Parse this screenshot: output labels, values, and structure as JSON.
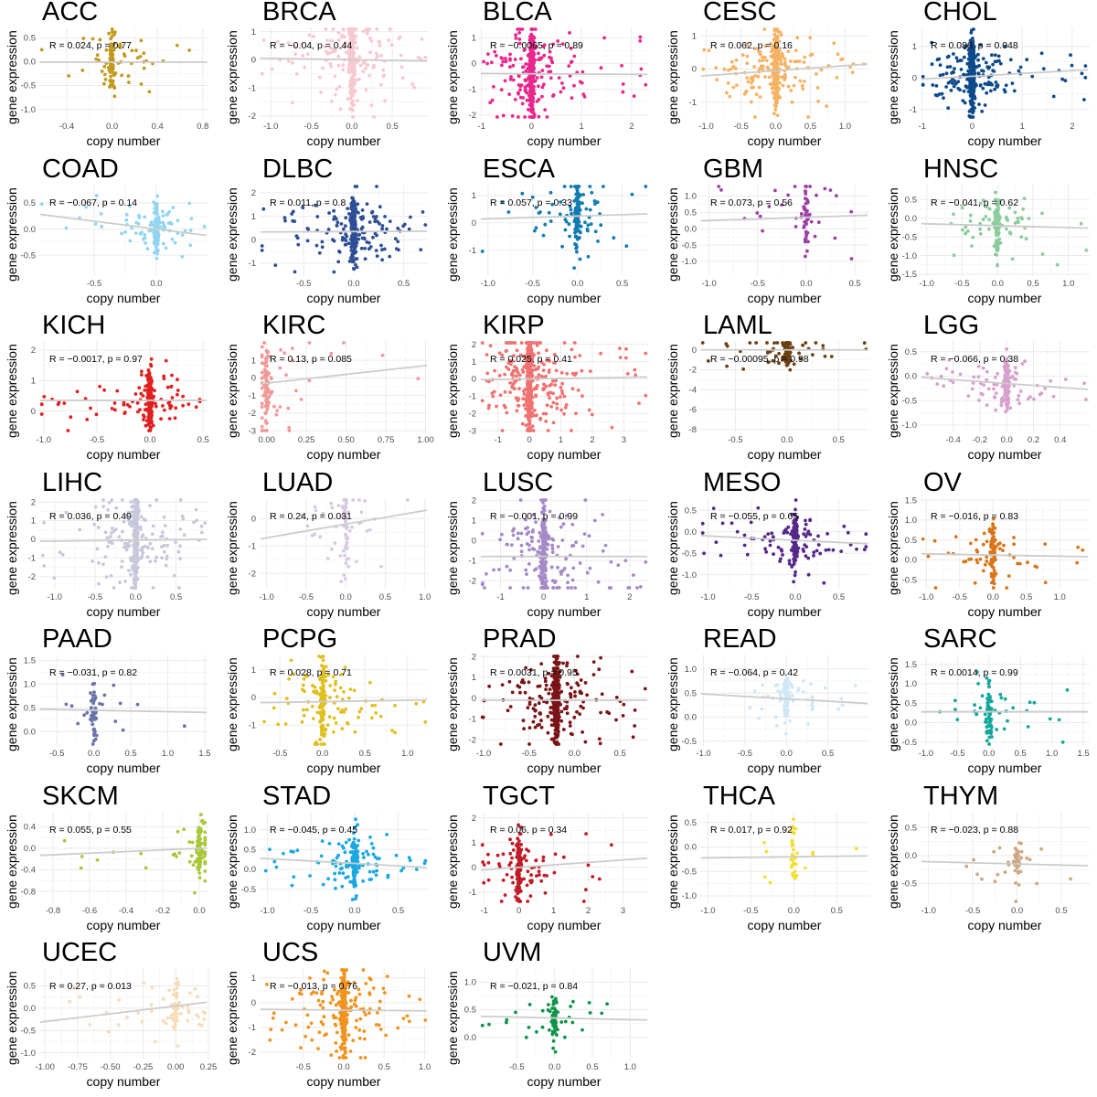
{
  "chart_data": [
    {
      "title": "ACC",
      "r": "R = 0.024, p = 0.77",
      "xlabel": "copy number",
      "ylabel": "gene expression",
      "color": "#c29a1e",
      "xlim": [
        -0.65,
        0.85
      ],
      "ylim": [
        -1.2,
        0.72
      ],
      "xticks": [
        "-0.4",
        "0.0",
        "0.4",
        "0.8"
      ],
      "yticks": [
        "-1.0",
        "-0.5",
        "0.0",
        "0.5"
      ],
      "fit": [
        0.0,
        -0.01
      ],
      "n": 120,
      "cluster_x": 0.0,
      "spread_y": 0.35
    },
    {
      "title": "BRCA",
      "r": "R = −0.04, p = 0.44",
      "xlabel": "copy number",
      "ylabel": "gene expression",
      "color": "#f8c8d0",
      "xlim": [
        -1.15,
        0.95
      ],
      "ylim": [
        -2.1,
        1.15
      ],
      "xticks": [
        "-1.0",
        "-0.5",
        "0.0",
        "0.5"
      ],
      "yticks": [
        "-2",
        "-1",
        "0",
        "1"
      ],
      "fit": [
        -0.05,
        0.0
      ],
      "n": 320,
      "cluster_x": 0.0,
      "spread_y": 0.6
    },
    {
      "title": "BLCA",
      "r": "R = −0.0065, p = 0.89",
      "xlabel": "copy number",
      "ylabel": "gene expression",
      "color": "#e8288c",
      "xlim": [
        -1.05,
        2.35
      ],
      "ylim": [
        -2.15,
        1.4
      ],
      "xticks": [
        "-1",
        "0",
        "1",
        "2"
      ],
      "yticks": [
        "-2",
        "-1",
        "0",
        "1"
      ],
      "fit": [
        -0.01,
        -0.4
      ],
      "n": 380,
      "cluster_x": 0.0,
      "spread_y": 0.55
    },
    {
      "title": "CESC",
      "r": "R = 0.062, p = 0.16",
      "xlabel": "copy number",
      "ylabel": "gene expression",
      "color": "#f6b264",
      "xlim": [
        -1.1,
        1.35
      ],
      "ylim": [
        -1.5,
        1.25
      ],
      "xticks": [
        "-1.0",
        "-0.5",
        "0.0",
        "0.5",
        "1.0"
      ],
      "yticks": [
        "-1",
        "0",
        "1"
      ],
      "fit": [
        0.15,
        -0.05
      ],
      "n": 400,
      "cluster_x": 0.0,
      "spread_y": 0.4
    },
    {
      "title": "CHOL",
      "r": "R = 0.088, p = 0.048",
      "xlabel": "copy number",
      "ylabel": "gene expression",
      "color": "#0d4a8a",
      "xlim": [
        -1.05,
        2.35
      ],
      "ylim": [
        -1.3,
        1.6
      ],
      "xticks": [
        "-1",
        "0",
        "1",
        "2"
      ],
      "yticks": [
        "-1",
        "0",
        "1"
      ],
      "fit": [
        0.09,
        0.05
      ],
      "n": 420,
      "cluster_x": 0.0,
      "spread_y": 0.4
    },
    {
      "title": "COAD",
      "r": "R = −0.067, p = 0.14",
      "xlabel": "copy number",
      "ylabel": "gene expression",
      "color": "#92d5f2",
      "xlim": [
        -0.95,
        0.42
      ],
      "ylim": [
        -0.9,
        0.85
      ],
      "xticks": [
        "-0.5",
        "0.0"
      ],
      "yticks": [
        "-0.5",
        "0.0",
        "0.5"
      ],
      "fit": [
        -0.3,
        0.0
      ],
      "n": 160,
      "cluster_x": 0.0,
      "spread_y": 0.3
    },
    {
      "title": "DLBC",
      "r": "R = 0.011, p = 0.8",
      "xlabel": "copy number",
      "ylabel": "gene expression",
      "color": "#2e4e96",
      "xlim": [
        -0.95,
        0.75
      ],
      "ylim": [
        -1.55,
        2.35
      ],
      "xticks": [
        "-0.5",
        "0.0",
        "0.5"
      ],
      "yticks": [
        "-1",
        "0",
        "1",
        "2"
      ],
      "fit": [
        0.02,
        0.35
      ],
      "n": 320,
      "cluster_x": 0.0,
      "spread_y": 0.4
    },
    {
      "title": "ESCA",
      "r": "R = 0.057, p = 0.33",
      "xlabel": "copy number",
      "ylabel": "gene expression",
      "color": "#127bb0",
      "xlim": [
        -1.1,
        0.8
      ],
      "ylim": [
        -1.95,
        1.4
      ],
      "xticks": [
        "-1.0",
        "-0.5",
        "0.0",
        "0.5"
      ],
      "yticks": [
        "-1",
        "0",
        "1"
      ],
      "fit": [
        0.1,
        0.25
      ],
      "n": 160,
      "cluster_x": 0.0,
      "spread_y": 0.5
    },
    {
      "title": "GBM",
      "r": "R = 0.073, p = 0.56",
      "xlabel": "copy number",
      "ylabel": "gene expression",
      "color": "#9b3fa5",
      "xlim": [
        -1.1,
        0.65
      ],
      "ylim": [
        -1.45,
        1.35
      ],
      "xticks": [
        "-1.0",
        "-0.5",
        "0.0",
        "0.5"
      ],
      "yticks": [
        "-1.0",
        "-0.5",
        "0.0",
        "0.5",
        "1.0"
      ],
      "fit": [
        0.1,
        0.35
      ],
      "n": 70,
      "cluster_x": 0.0,
      "spread_y": 0.5
    },
    {
      "title": "HNSC",
      "r": "R = −0.041, p = 0.62",
      "xlabel": "copy number",
      "ylabel": "gene expression",
      "color": "#8ccc9c",
      "xlim": [
        -1.1,
        1.3
      ],
      "ylim": [
        -1.55,
        0.9
      ],
      "xticks": [
        "-1.0",
        "-0.5",
        "0.0",
        "0.5",
        "1.0"
      ],
      "yticks": [
        "-1.5",
        "-1.0",
        "-0.5",
        "0.0",
        "0.5"
      ],
      "fit": [
        -0.05,
        -0.2
      ],
      "n": 150,
      "cluster_x": 0.0,
      "spread_y": 0.4
    },
    {
      "title": "KICH",
      "r": "R = −0.0017, p = 0.97",
      "xlabel": "copy number",
      "ylabel": "gene expression",
      "color": "#e02020",
      "xlim": [
        -1.05,
        0.55
      ],
      "ylim": [
        -0.7,
        2.3
      ],
      "xticks": [
        "-1.0",
        "-0.5",
        "0.0",
        "0.5"
      ],
      "yticks": [
        "0",
        "1",
        "2"
      ],
      "fit": [
        0.0,
        0.35
      ],
      "n": 230,
      "cluster_x": 0.0,
      "spread_y": 0.35
    },
    {
      "title": "KIRC",
      "r": "R = 0.13, p = 0.085",
      "xlabel": "copy number",
      "ylabel": "gene expression",
      "color": "#f29a9a",
      "xlim": [
        -0.05,
        1.02
      ],
      "ylim": [
        -3.1,
        2.1
      ],
      "xticks": [
        "0.00",
        "0.25",
        "0.50",
        "0.75",
        "1.00"
      ],
      "yticks": [
        "-3",
        "-2",
        "-1",
        "0",
        "1"
      ],
      "fit": [
        1.0,
        -0.3
      ],
      "n": 120,
      "cluster_x": 0.0,
      "spread_y": 0.6
    },
    {
      "title": "KIRP",
      "r": "R = 0.025, p = 0.41",
      "xlabel": "copy number",
      "ylabel": "gene expression",
      "color": "#f07272",
      "xlim": [
        -1.6,
        3.8
      ],
      "ylim": [
        -3.1,
        2.2
      ],
      "xticks": [
        "-1",
        "0",
        "1",
        "2",
        "3"
      ],
      "yticks": [
        "-3",
        "-2",
        "-1",
        "0",
        "1",
        "2"
      ],
      "fit": [
        0.03,
        0.0
      ],
      "n": 550,
      "cluster_x": 0.0,
      "spread_y": 0.6
    },
    {
      "title": "LAML",
      "r": "R = −0.00095, p = 0.98",
      "xlabel": "copy number",
      "ylabel": "gene expression",
      "color": "#6b4012",
      "xlim": [
        -0.85,
        0.8
      ],
      "ylim": [
        -8.3,
        0.9
      ],
      "xticks": [
        "-0.5",
        "0.0",
        "0.5"
      ],
      "yticks": [
        "-8",
        "-6",
        "-4",
        "-2",
        "0"
      ],
      "fit": [
        0.0,
        0.0
      ],
      "n": 120,
      "cluster_x": 0.0,
      "spread_y": 0.2
    },
    {
      "title": "LGG",
      "r": "R = −0.066, p = 0.38",
      "xlabel": "copy number",
      "ylabel": "gene expression",
      "color": "#d7a1cc",
      "xlim": [
        -0.65,
        0.62
      ],
      "ylim": [
        -1.15,
        0.72
      ],
      "xticks": [
        "-0.4",
        "-0.2",
        "0.0",
        "0.2",
        "0.4"
      ],
      "yticks": [
        "-1.0",
        "-0.5",
        "0.0",
        "0.5"
      ],
      "fit": [
        -0.2,
        -0.15
      ],
      "n": 180,
      "cluster_x": 0.0,
      "spread_y": 0.3
    },
    {
      "title": "LIHC",
      "r": "R = 0.036, p = 0.49",
      "xlabel": "copy number",
      "ylabel": "gene expression",
      "color": "#c8c8dc",
      "xlim": [
        -1.2,
        0.9
      ],
      "ylim": [
        -2.7,
        2.2
      ],
      "xticks": [
        "-1.0",
        "-0.5",
        "0.0",
        "0.5"
      ],
      "yticks": [
        "-2",
        "-1",
        "0",
        "1",
        "2"
      ],
      "fit": [
        0.05,
        -0.05
      ],
      "n": 380,
      "cluster_x": 0.0,
      "spread_y": 0.6
    },
    {
      "title": "LUAD",
      "r": "R = 0.24, p = 0.031",
      "xlabel": "copy number",
      "ylabel": "gene expression",
      "color": "#d8c8e2",
      "xlim": [
        -1.1,
        1.05
      ],
      "ylim": [
        -2.6,
        0.75
      ],
      "xticks": [
        "-1.0",
        "-0.5",
        "0.0",
        "0.5",
        "1.0"
      ],
      "yticks": [
        "-2",
        "-1",
        "0"
      ],
      "fit": [
        0.5,
        -0.2
      ],
      "n": 80,
      "cluster_x": 0.0,
      "spread_y": 0.6
    },
    {
      "title": "LUSC",
      "r": "R = −0.001, p = 0.99",
      "xlabel": "copy number",
      "ylabel": "gene expression",
      "color": "#a68ac8",
      "xlim": [
        -1.5,
        2.45
      ],
      "ylim": [
        -2.45,
        2.1
      ],
      "xticks": [
        "-1",
        "0",
        "1",
        "2"
      ],
      "yticks": [
        "-2",
        "-1",
        "0",
        "1",
        "2"
      ],
      "fit": [
        0.0,
        -0.8
      ],
      "n": 320,
      "cluster_x": 0.0,
      "spread_y": 0.6
    },
    {
      "title": "MESO",
      "r": "R = −0.055, p = 0.65",
      "xlabel": "copy number",
      "ylabel": "gene expression",
      "color": "#55288a",
      "xlim": [
        -1.1,
        0.85
      ],
      "ylim": [
        -1.35,
        0.78
      ],
      "xticks": [
        "-1.0",
        "-0.5",
        "0.0",
        "0.5"
      ],
      "yticks": [
        "-1.0",
        "-0.5",
        "0.0",
        "0.5"
      ],
      "fit": [
        -0.1,
        -0.2
      ],
      "n": 200,
      "cluster_x": 0.0,
      "spread_y": 0.35
    },
    {
      "title": "OV",
      "r": "R = −0.016, p = 0.83",
      "xlabel": "copy number",
      "ylabel": "gene expression",
      "color": "#d8761a",
      "xlim": [
        -1.1,
        1.45
      ],
      "ylim": [
        -0.75,
        1.55
      ],
      "xticks": [
        "-1.0",
        "-0.5",
        "0.0",
        "0.5",
        "1.0"
      ],
      "yticks": [
        "-0.5",
        "0.0",
        "0.5",
        "1.0",
        "1.5"
      ],
      "fit": [
        -0.03,
        0.12
      ],
      "n": 120,
      "cluster_x": 0.0,
      "spread_y": 0.35
    },
    {
      "title": "PAAD",
      "r": "R = −0.031, p = 0.82",
      "xlabel": "copy number",
      "ylabel": "gene expression",
      "color": "#6a74a8",
      "xlim": [
        -0.75,
        1.55
      ],
      "ylim": [
        -0.3,
        1.62
      ],
      "xticks": [
        "-0.5",
        "0.0",
        "0.5",
        "1.0",
        "1.5"
      ],
      "yticks": [
        "0.0",
        "0.5",
        "1.0",
        "1.5"
      ],
      "fit": [
        -0.03,
        0.45
      ],
      "n": 60,
      "cluster_x": 0.0,
      "spread_y": 0.35
    },
    {
      "title": "PCPG",
      "r": "R = 0.028, p = 0.71",
      "xlabel": "copy number",
      "ylabel": "gene expression",
      "color": "#e0c020",
      "xlim": [
        -0.75,
        1.25
      ],
      "ylim": [
        -1.75,
        1.55
      ],
      "xticks": [
        "-0.5",
        "0.0",
        "0.5",
        "1.0"
      ],
      "yticks": [
        "-1",
        "0",
        "1"
      ],
      "fit": [
        0.05,
        -0.15
      ],
      "n": 200,
      "cluster_x": 0.0,
      "spread_y": 0.55
    },
    {
      "title": "PRAD",
      "r": "R = 0.0031, p = 0.95",
      "xlabel": "copy number",
      "ylabel": "gene expression",
      "color": "#7a1418",
      "xlim": [
        -1.05,
        0.82
      ],
      "ylim": [
        -2.3,
        2.1
      ],
      "xticks": [
        "-1.0",
        "-0.5",
        "0.0",
        "0.5"
      ],
      "yticks": [
        "-2",
        "-1",
        "0",
        "1",
        "2"
      ],
      "fit": [
        0.0,
        -0.1
      ],
      "n": 420,
      "cluster_x": -0.2,
      "spread_y": 0.5
    },
    {
      "title": "READ",
      "r": "R = −0.064, p = 0.42",
      "xlabel": "copy number",
      "ylabel": "gene expression",
      "color": "#d0e8f5",
      "xlim": [
        -1.05,
        1.0
      ],
      "ylim": [
        -0.6,
        1.3
      ],
      "xticks": [
        "-1.0",
        "-0.5",
        "0.0",
        "0.5"
      ],
      "yticks": [
        "-0.5",
        "0.0",
        "0.5",
        "1.0"
      ],
      "fit": [
        -0.1,
        0.38
      ],
      "n": 110,
      "cluster_x": 0.0,
      "spread_y": 0.3
    },
    {
      "title": "SARC",
      "r": "R = 0.0014, p = 0.99",
      "xlabel": "copy number",
      "ylabel": "gene expression",
      "color": "#14a89c",
      "xlim": [
        -1.1,
        1.6
      ],
      "ylim": [
        -0.6,
        1.75
      ],
      "xticks": [
        "-1.0",
        "-0.5",
        "0.0",
        "0.5",
        "1.0",
        "1.5"
      ],
      "yticks": [
        "-0.5",
        "0.0",
        "0.5",
        "1.0",
        "1.5"
      ],
      "fit": [
        0.0,
        0.28
      ],
      "n": 100,
      "cluster_x": 0.0,
      "spread_y": 0.35
    },
    {
      "title": "SKCM",
      "r": "R = 0.055, p = 0.55",
      "xlabel": "copy number",
      "ylabel": "gene expression",
      "color": "#a8c83a",
      "xlim": [
        -0.88,
        0.05
      ],
      "ylim": [
        -1.02,
        0.68
      ],
      "xticks": [
        "-0.8",
        "-0.6",
        "-0.4",
        "-0.2",
        "0.0"
      ],
      "yticks": [
        "-0.8",
        "-0.4",
        "0.0",
        "0.4"
      ],
      "fit": [
        0.15,
        0.0
      ],
      "n": 110,
      "cluster_x": 0.0,
      "spread_y": 0.3
    },
    {
      "title": "STAD",
      "r": "R = −0.045, p = 0.45",
      "xlabel": "copy number",
      "ylabel": "gene expression",
      "color": "#1aa8e0",
      "xlim": [
        -1.1,
        0.85
      ],
      "ylim": [
        -0.85,
        1.45
      ],
      "xticks": [
        "-1.0",
        "-0.5",
        "0.0",
        "0.5"
      ],
      "yticks": [
        "-0.5",
        "0.0",
        "0.5",
        "1.0"
      ],
      "fit": [
        -0.12,
        0.15
      ],
      "n": 220,
      "cluster_x": 0.0,
      "spread_y": 0.3
    },
    {
      "title": "TGCT",
      "r": "R = 0.06, p = 0.34",
      "xlabel": "copy number",
      "ylabel": "gene expression",
      "color": "#c01c28",
      "xlim": [
        -1.15,
        3.75
      ],
      "ylim": [
        -1.45,
        2.25
      ],
      "xticks": [
        "-1",
        "0",
        "1",
        "2",
        "3"
      ],
      "yticks": [
        "-1",
        "0",
        "1",
        "2"
      ],
      "fit": [
        0.1,
        0.0
      ],
      "n": 180,
      "cluster_x": 0.0,
      "spread_y": 0.45
    },
    {
      "title": "THCA",
      "r": "R = 0.017, p = 0.92",
      "xlabel": "copy number",
      "ylabel": "gene expression",
      "color": "#f0e030",
      "xlim": [
        -1.1,
        0.88
      ],
      "ylim": [
        -1.15,
        0.72
      ],
      "xticks": [
        "-1.0",
        "-0.5",
        "0.0",
        "0.5"
      ],
      "yticks": [
        "-1.0",
        "-0.5",
        "0.0",
        "0.5"
      ],
      "fit": [
        0.02,
        -0.2
      ],
      "n": 40,
      "cluster_x": 0.0,
      "spread_y": 0.4
    },
    {
      "title": "THYM",
      "r": "R = −0.023, p = 0.88",
      "xlabel": "copy number",
      "ylabel": "gene expression",
      "color": "#cda882",
      "xlim": [
        -1.1,
        0.82
      ],
      "ylim": [
        -0.85,
        0.78
      ],
      "xticks": [
        "-1.0",
        "-0.5",
        "0.0",
        "0.5"
      ],
      "yticks": [
        "-0.5",
        "0.0",
        "0.5"
      ],
      "fit": [
        -0.04,
        -0.15
      ],
      "n": 60,
      "cluster_x": 0.0,
      "spread_y": 0.3
    },
    {
      "title": "UCEC",
      "r": "R = 0.27, p = 0.013",
      "xlabel": "copy number",
      "ylabel": "gene expression",
      "color": "#f6dcb8",
      "xlim": [
        -1.05,
        0.25
      ],
      "ylim": [
        -1.15,
        0.9
      ],
      "xticks": [
        "-1.00",
        "-0.75",
        "-0.50",
        "-0.25",
        "0.00",
        "0.25"
      ],
      "yticks": [
        "-1.0",
        "-0.5",
        "0.0",
        "0.5"
      ],
      "fit": [
        0.35,
        0.05
      ],
      "n": 90,
      "cluster_x": 0.0,
      "spread_y": 0.35
    },
    {
      "title": "UCS",
      "r": "R = −0.013, p = 0.76",
      "xlabel": "copy number",
      "ylabel": "gene expression",
      "color": "#f09420",
      "xlim": [
        -1.05,
        1.05
      ],
      "ylim": [
        -2.3,
        1.4
      ],
      "xticks": [
        "-0.5",
        "0.0",
        "0.5",
        "1.0"
      ],
      "yticks": [
        "-2",
        "-1",
        "0",
        "1"
      ],
      "fit": [
        -0.03,
        -0.3
      ],
      "n": 340,
      "cluster_x": 0.0,
      "spread_y": 0.5
    },
    {
      "title": "UVM",
      "r": "R = −0.021, p = 0.84",
      "xlabel": "copy number",
      "ylabel": "gene expression",
      "color": "#0e9448",
      "xlim": [
        -1.0,
        1.25
      ],
      "ylim": [
        -0.4,
        1.25
      ],
      "xticks": [
        "-0.5",
        "0.0",
        "0.5",
        "1.0"
      ],
      "yticks": [
        "0.0",
        "0.5",
        "1.0"
      ],
      "fit": [
        -0.03,
        0.35
      ],
      "n": 80,
      "cluster_x": 0.0,
      "spread_y": 0.3
    }
  ]
}
